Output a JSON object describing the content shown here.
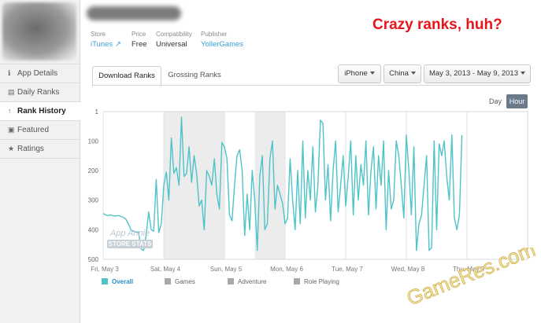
{
  "sidebar": {
    "items": [
      {
        "label": "App Details",
        "icon": "info-icon",
        "glyph": "ℹ",
        "active": false
      },
      {
        "label": "Daily Ranks",
        "icon": "document-icon",
        "glyph": "▤",
        "active": false
      },
      {
        "label": "Rank History",
        "icon": "arrow-up-icon",
        "glyph": "↑",
        "active": true
      },
      {
        "label": "Featured",
        "icon": "featured-icon",
        "glyph": "▣",
        "active": false
      },
      {
        "label": "Ratings",
        "icon": "star-icon",
        "glyph": "★",
        "active": false
      }
    ]
  },
  "app_meta": {
    "store_label": "Store",
    "store_value": "iTunes",
    "price_label": "Price",
    "price_value": "Free",
    "compat_label": "Compatibility",
    "compat_value": "Universal",
    "publisher_label": "Publisher",
    "publisher_value": "YollerGames"
  },
  "annotation": "Crazy ranks, huh?",
  "tabs": {
    "download": "Download Ranks",
    "grossing": "Grossing Ranks"
  },
  "filters": {
    "device": "iPhone",
    "country": "China",
    "date_range": "May 3, 2013 - May 9, 2013"
  },
  "granularity": {
    "day": "Day",
    "hour": "Hour",
    "selected": "Hour"
  },
  "watermark": {
    "line1": "App Annie",
    "line2": "STORE STATS"
  },
  "site_watermark": "GameRes.com",
  "colors": {
    "series_overall": "#4ec3c8",
    "accent_link": "#3a9fd6",
    "annotation": "#e8151b",
    "legend_inactive": "#a9a9a9"
  },
  "chart_data": {
    "type": "line",
    "ylabel": "",
    "y_inverted": true,
    "ylim": [
      500,
      1
    ],
    "yticks": [
      1,
      100,
      200,
      300,
      400,
      500
    ],
    "xlim": [
      0,
      168
    ],
    "xticks": [
      {
        "x": 0,
        "label": "Fri, May 3"
      },
      {
        "x": 24,
        "label": "Sat, May 4"
      },
      {
        "x": 48,
        "label": "Sun, May 5"
      },
      {
        "x": 72,
        "label": "Mon, May 6"
      },
      {
        "x": 96,
        "label": "Tue, May 7"
      },
      {
        "x": 120,
        "label": "Wed, May 8"
      },
      {
        "x": 144,
        "label": "Thu, May 9"
      }
    ],
    "shaded_ranges": [
      [
        24,
        48
      ],
      [
        60,
        72
      ]
    ],
    "legend": [
      {
        "name": "Overall",
        "active": true
      },
      {
        "name": "Games",
        "active": false
      },
      {
        "name": "Adventure",
        "active": false
      },
      {
        "name": "Role Playing",
        "active": false
      }
    ],
    "series": [
      {
        "name": "Overall",
        "x": [
          0,
          1,
          2,
          3,
          4,
          5,
          6,
          7,
          8,
          9,
          10,
          11,
          12,
          13,
          14,
          15,
          16,
          17,
          18,
          19,
          20,
          21,
          22,
          23,
          24,
          25,
          26,
          27,
          28,
          29,
          30,
          31,
          32,
          33,
          34,
          35,
          36,
          37,
          38,
          39,
          40,
          41,
          42,
          43,
          44,
          45,
          46,
          47,
          48,
          49,
          50,
          51,
          52,
          53,
          54,
          55,
          56,
          57,
          58,
          59,
          60,
          61,
          62,
          63,
          64,
          65,
          66,
          67,
          68,
          69,
          70,
          71,
          72,
          73,
          74,
          75,
          76,
          77,
          78,
          79,
          80,
          81,
          82,
          83,
          84,
          85,
          86,
          87,
          88,
          89,
          90,
          91,
          92,
          93,
          94,
          95,
          96,
          97,
          98,
          99,
          100,
          101,
          102,
          103,
          104,
          105,
          106,
          107,
          108,
          109,
          110,
          111,
          112,
          113,
          114,
          115,
          116,
          117,
          118,
          119,
          120,
          121,
          122,
          123,
          124,
          125,
          126,
          127,
          128,
          129,
          130,
          131,
          132,
          133,
          134,
          135,
          136,
          137,
          138,
          139,
          140,
          141,
          142
        ],
        "y": [
          345,
          350,
          352,
          350,
          353,
          354,
          352,
          355,
          358,
          365,
          380,
          400,
          405,
          408,
          408,
          465,
          470,
          420,
          340,
          400,
          405,
          230,
          410,
          380,
          250,
          205,
          300,
          90,
          210,
          190,
          250,
          20,
          220,
          210,
          120,
          240,
          150,
          210,
          320,
          300,
          400,
          200,
          220,
          250,
          160,
          280,
          330,
          105,
          120,
          160,
          350,
          370,
          250,
          150,
          130,
          200,
          420,
          280,
          400,
          200,
          300,
          470,
          220,
          150,
          400,
          380,
          160,
          100,
          330,
          250,
          280,
          310,
          380,
          360,
          160,
          300,
          400,
          200,
          380,
          100,
          360,
          200,
          300,
          120,
          340,
          250,
          30,
          40,
          300,
          180,
          370,
          200,
          100,
          340,
          250,
          150,
          320,
          220,
          100,
          350,
          150,
          300,
          180,
          250,
          100,
          350,
          200,
          120,
          330,
          150,
          250,
          100,
          400,
          200,
          330,
          300,
          100,
          150,
          250,
          360,
          80,
          200,
          350,
          120,
          470,
          380,
          350,
          250,
          150,
          470,
          460,
          100,
          400,
          110,
          150,
          100,
          220,
          300,
          80,
          360,
          400,
          350,
          80
        ]
      }
    ]
  }
}
